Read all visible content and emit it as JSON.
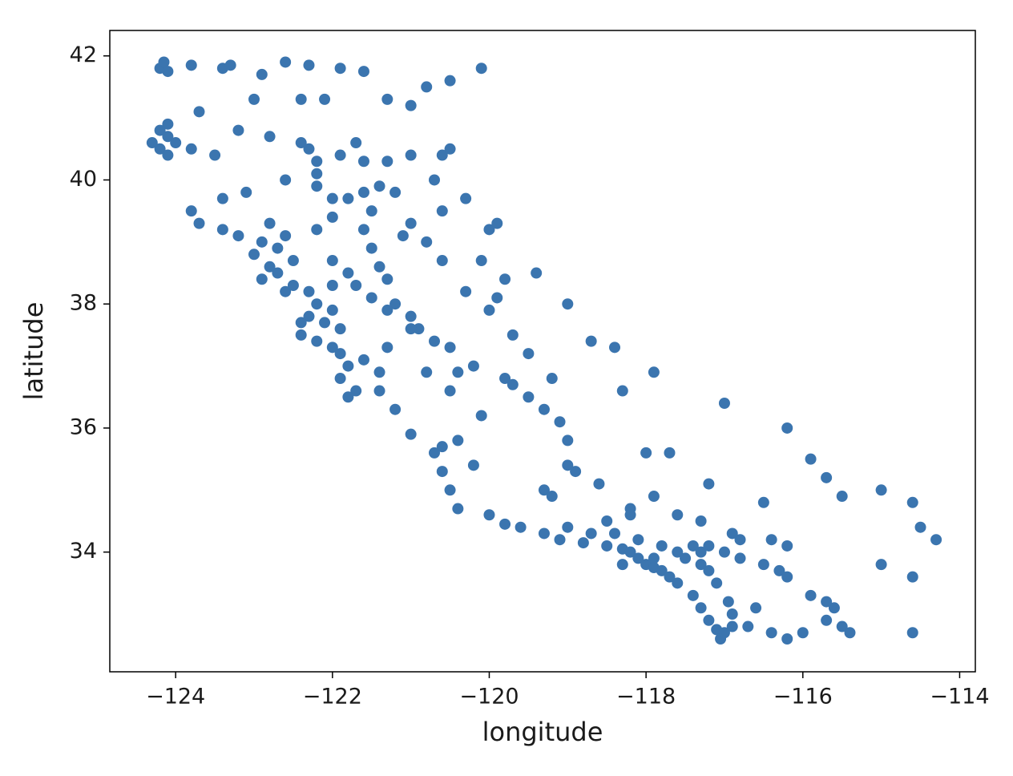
{
  "chart_data": {
    "type": "scatter",
    "xlabel": "longitude",
    "ylabel": "latitude",
    "color": "#3b75af",
    "xlim": [
      -124.84,
      -113.8
    ],
    "ylim": [
      32.07,
      42.41
    ],
    "xticks": [
      {
        "value": -124,
        "label": "−124"
      },
      {
        "value": -122,
        "label": "−122"
      },
      {
        "value": -120,
        "label": "−120"
      },
      {
        "value": -118,
        "label": "−118"
      },
      {
        "value": -116,
        "label": "−116"
      },
      {
        "value": -114,
        "label": "−114"
      }
    ],
    "yticks": [
      34,
      36,
      38,
      40,
      42
    ],
    "x": [
      -124.2,
      -124.1,
      -124.15,
      -123.8,
      -123.4,
      -123.3,
      -122.9,
      -122.6,
      -122.3,
      -121.9,
      -121.6,
      -120.1,
      -120.5,
      -120.8,
      -121.3,
      -121.0,
      -122.1,
      -122.4,
      -123.0,
      -123.7,
      -124.1,
      -124.2,
      -124.1,
      -124.0,
      -124.2,
      -124.3,
      -124.1,
      -123.8,
      -123.5,
      -123.2,
      -122.8,
      -122.4,
      -122.3,
      -122.2,
      -122.2,
      -121.9,
      -121.6,
      -121.3,
      -121.0,
      -120.6,
      -120.5,
      -120.7,
      -121.2,
      -121.6,
      -121.8,
      -122.0,
      -122.2,
      -122.6,
      -123.1,
      -123.4,
      -123.8,
      -123.7,
      -123.4,
      -123.2,
      -122.9,
      -122.7,
      -122.5,
      -122.7,
      -122.9,
      -122.5,
      -122.3,
      -122.2,
      -122.0,
      -122.3,
      -122.4,
      -122.4,
      -122.2,
      -122.0,
      -121.9,
      -121.8,
      -121.9,
      -121.7,
      -121.8,
      -121.4,
      -121.2,
      -121.0,
      -120.7,
      -120.6,
      -120.5,
      -120.4,
      -120.0,
      -119.8,
      -119.6,
      -119.3,
      -119.1,
      -118.8,
      -118.5,
      -118.3,
      -118.2,
      -118.1,
      -118.0,
      -117.9,
      -117.8,
      -117.7,
      -117.6,
      -117.4,
      -117.3,
      -117.2,
      -117.1,
      -117.05,
      -117.0,
      -116.9,
      -116.7,
      -116.9,
      -117.2,
      -117.3,
      -117.4,
      -117.2,
      -117.0,
      -116.8,
      -116.5,
      -116.3,
      -116.2,
      -115.6,
      -115.5,
      -115.4,
      -115.7,
      -114.6,
      -114.6,
      -114.6,
      -114.3,
      -114.5,
      -115.0,
      -115.0,
      -121.5,
      -121.6,
      -121.5,
      -121.4,
      -121.3,
      -121.2,
      -121.0,
      -120.9,
      -120.7,
      -120.5,
      -120.2,
      -119.8,
      -119.7,
      -119.5,
      -119.3,
      -119.1,
      -119.0,
      -119.0,
      -118.9,
      -120.1,
      -120.4,
      -121.1,
      -121.0,
      -120.8,
      -120.6,
      -120.3,
      -120.0,
      -119.7,
      -119.5,
      -119.2,
      -118.7,
      -118.4,
      -118.3,
      -117.9,
      -118.0,
      -117.7,
      -117.0,
      -116.2,
      -115.9,
      -115.7,
      -115.5,
      -116.5,
      -117.2,
      -117.9,
      -118.2,
      -118.6,
      -119.3,
      -120.2,
      -120.4,
      -120.6,
      -121.7,
      -121.4,
      -120.0,
      -119.9,
      -120.3,
      -120.6,
      -120.1,
      -119.8,
      -119.4,
      -119.0,
      -119.9,
      -122.8,
      -122.6,
      -122.2,
      -122.0,
      -122.0,
      -121.8,
      -121.7,
      -121.5,
      -121.3,
      -121.0,
      -121.3,
      -121.6,
      -122.1,
      -121.9,
      -122.0,
      -122.6,
      -122.8,
      -123.0,
      -121.4,
      -120.8,
      -120.5,
      -119.0,
      -118.7,
      -118.4,
      -118.1,
      -117.8,
      -117.6,
      -117.5,
      -117.3,
      -117.1,
      -116.95,
      -116.6,
      -116.4,
      -116.2,
      -116.0,
      -115.9,
      -115.7,
      -116.2,
      -116.4,
      -116.8,
      -116.9,
      -117.3,
      -117.6,
      -118.2,
      -118.5,
      -119.2,
      -118.3,
      -117.9
    ],
    "values": [
      41.8,
      41.75,
      41.9,
      41.85,
      41.8,
      41.85,
      41.7,
      41.9,
      41.85,
      41.8,
      41.75,
      41.8,
      41.6,
      41.5,
      41.3,
      41.2,
      41.3,
      41.3,
      41.3,
      41.1,
      40.9,
      40.8,
      40.7,
      40.6,
      40.5,
      40.6,
      40.4,
      40.5,
      40.4,
      40.8,
      40.7,
      40.6,
      40.5,
      40.3,
      40.1,
      40.4,
      40.3,
      40.3,
      40.4,
      40.4,
      40.5,
      40.0,
      39.8,
      39.8,
      39.7,
      39.7,
      39.9,
      40.0,
      39.8,
      39.7,
      39.5,
      39.3,
      39.2,
      39.1,
      39.0,
      38.9,
      38.7,
      38.5,
      38.4,
      38.3,
      38.2,
      38.0,
      37.9,
      37.8,
      37.7,
      37.5,
      37.4,
      37.3,
      37.2,
      37.0,
      36.8,
      36.6,
      36.5,
      36.6,
      36.3,
      35.9,
      35.6,
      35.3,
      35.0,
      34.7,
      34.6,
      34.45,
      34.4,
      34.3,
      34.2,
      34.15,
      34.1,
      34.05,
      34.0,
      33.9,
      33.8,
      33.75,
      33.7,
      33.6,
      33.5,
      33.3,
      33.1,
      32.9,
      32.75,
      32.6,
      32.7,
      32.8,
      32.8,
      33.0,
      33.7,
      34.0,
      34.1,
      34.1,
      34.0,
      33.9,
      33.8,
      33.7,
      33.6,
      33.1,
      32.8,
      32.7,
      32.9,
      32.7,
      33.6,
      34.8,
      34.2,
      34.4,
      33.8,
      35.0,
      39.5,
      39.2,
      38.9,
      38.6,
      38.4,
      38.0,
      37.8,
      37.6,
      37.4,
      37.3,
      37.0,
      36.8,
      36.7,
      36.5,
      36.3,
      36.1,
      35.8,
      35.4,
      35.3,
      36.2,
      36.9,
      39.1,
      39.3,
      39.0,
      38.7,
      38.2,
      37.9,
      37.5,
      37.2,
      36.8,
      37.4,
      37.3,
      36.6,
      36.9,
      35.6,
      35.6,
      36.4,
      36.0,
      35.5,
      35.2,
      34.9,
      34.8,
      35.1,
      34.9,
      34.7,
      35.1,
      35.0,
      35.4,
      35.8,
      35.7,
      40.6,
      39.9,
      39.2,
      39.3,
      39.7,
      39.5,
      38.7,
      38.4,
      38.5,
      38.0,
      38.1,
      39.3,
      39.1,
      39.2,
      39.4,
      38.7,
      38.5,
      38.3,
      38.1,
      37.9,
      37.6,
      37.3,
      37.1,
      37.7,
      37.6,
      38.3,
      38.2,
      38.6,
      38.8,
      36.9,
      36.9,
      36.6,
      34.4,
      34.3,
      34.3,
      34.2,
      34.1,
      34.0,
      33.9,
      33.8,
      33.5,
      33.2,
      33.1,
      32.7,
      32.6,
      32.7,
      33.3,
      33.2,
      34.1,
      34.2,
      34.2,
      34.3,
      34.5,
      34.6,
      34.6,
      34.5,
      34.9,
      33.8,
      33.9
    ]
  }
}
